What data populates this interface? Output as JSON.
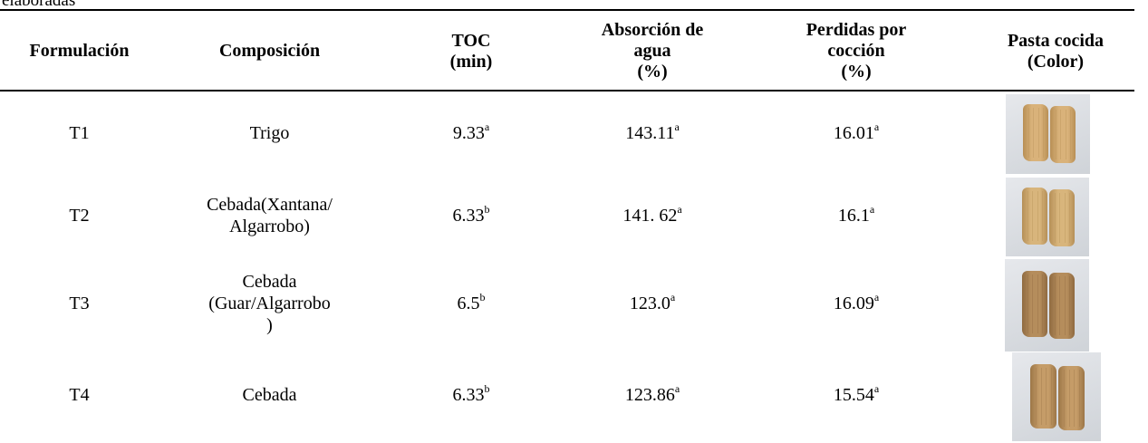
{
  "caption_fragment": "elaboradas",
  "headers": {
    "formulacion": "Formulación",
    "composicion": "Composición",
    "toc": [
      "TOC",
      "(min)"
    ],
    "absorcion": [
      "Absorción de",
      "agua",
      "(%)"
    ],
    "perdidas": [
      "Perdidas por",
      "cocción",
      "(%)"
    ],
    "pasta": [
      "Pasta cocida",
      "(Color)"
    ]
  },
  "rows": [
    {
      "formulacion": "T1",
      "composicion": [
        "Trigo"
      ],
      "toc": "9.33",
      "toc_sup": "a",
      "absorcion": "143.11",
      "absorcion_sup": "a",
      "perdidas": "16.01",
      "perdidas_sup": "a",
      "color": "#d9b27a",
      "shadow": "#b88f55"
    },
    {
      "formulacion": "T2",
      "composicion": [
        "Cebada(Xantana/",
        "Algarrobo)"
      ],
      "toc": "6.33",
      "toc_sup": "b",
      "absorcion": "141. 62",
      "absorcion_sup": "a",
      "perdidas": "16.1",
      "perdidas_sup": "a",
      "color": "#d8b57c",
      "shadow": "#b58f57"
    },
    {
      "formulacion": "T3",
      "composicion": [
        "Cebada",
        "(Guar/Algarrobo",
        ")"
      ],
      "toc": "6.5",
      "toc_sup": "b",
      "absorcion": "123.0",
      "absorcion_sup": "a",
      "perdidas": "16.09",
      "perdidas_sup": "a",
      "color": "#b58d5c",
      "shadow": "#8f6a40"
    },
    {
      "formulacion": "T4",
      "composicion": [
        "Cebada"
      ],
      "toc": "6.33",
      "toc_sup": "b",
      "absorcion": "123.86",
      "absorcion_sup": "a",
      "perdidas": "15.54",
      "perdidas_sup": "a",
      "color": "#c59c68",
      "shadow": "#9c7647"
    }
  ]
}
